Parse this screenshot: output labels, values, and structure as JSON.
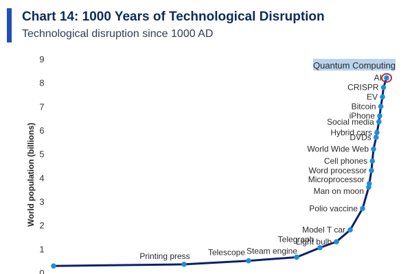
{
  "header": {
    "title": "Chart 14: 1000 Years of Technological Disruption",
    "subtitle": "Technological disruption since 1000 AD"
  },
  "colors": {
    "accent": "#1f4fb5",
    "line": "#0c1f6b",
    "marker": "#1b8fd9",
    "highlight_ring": "#c0283c",
    "highlight_box": "#b8d3ee"
  },
  "chart_data": {
    "type": "line",
    "title": "Chart 14: 1000 Years of Technological Disruption",
    "subtitle": "Technological disruption since 1000 AD",
    "ylabel": "World population (billions)",
    "xlabel": "",
    "ylim": [
      0,
      9
    ],
    "yticks": [
      "0",
      "1",
      "2",
      "3",
      "4",
      "5",
      "6",
      "7",
      "8",
      "9"
    ],
    "grid": false,
    "series": [
      {
        "points": [
          {
            "x": 1000,
            "y": 0.28,
            "label": ""
          },
          {
            "x": 1440,
            "y": 0.35,
            "label": "Printing press"
          },
          {
            "x": 1608,
            "y": 0.5,
            "label": "Telescope"
          },
          {
            "x": 1712,
            "y": 0.65,
            "label": "Steam engine"
          },
          {
            "x": 1837,
            "y": 1.05,
            "label": "Telegraph"
          },
          {
            "x": 1879,
            "y": 1.3,
            "label": "Light bulb"
          },
          {
            "x": 1908,
            "y": 1.8,
            "label": "Model T car"
          },
          {
            "x": 1955,
            "y": 2.7,
            "label": "Polio vaccine"
          },
          {
            "x": 1969,
            "y": 3.6,
            "label": "Man on moon"
          },
          {
            "x": 1971,
            "y": 3.75,
            "label": "Microprocessor"
          },
          {
            "x": 1979,
            "y": 4.3,
            "label": "Word processor"
          },
          {
            "x": 1983,
            "y": 4.7,
            "label": "Cell phones"
          },
          {
            "x": 1989,
            "y": 5.2,
            "label": "World Wide Web"
          },
          {
            "x": 1995,
            "y": 5.7,
            "label": "DVDs"
          },
          {
            "x": 1997,
            "y": 5.9,
            "label": "Hybrid cars"
          },
          {
            "x": 2004,
            "y": 6.35,
            "label": "Social media"
          },
          {
            "x": 2007,
            "y": 6.6,
            "label": "iPhone"
          },
          {
            "x": 2009,
            "y": 7.0,
            "label": "Bitcoin"
          },
          {
            "x": 2012,
            "y": 7.4,
            "label": "EV"
          },
          {
            "x": 2013,
            "y": 7.8,
            "label": "CRISPR"
          },
          {
            "x": 2016,
            "y": 8.2,
            "label": "AI"
          }
        ]
      }
    ],
    "annotations": [
      {
        "text": "Quantum Computing",
        "highlighted": true
      },
      {
        "text": "AI",
        "ring": true
      }
    ]
  }
}
